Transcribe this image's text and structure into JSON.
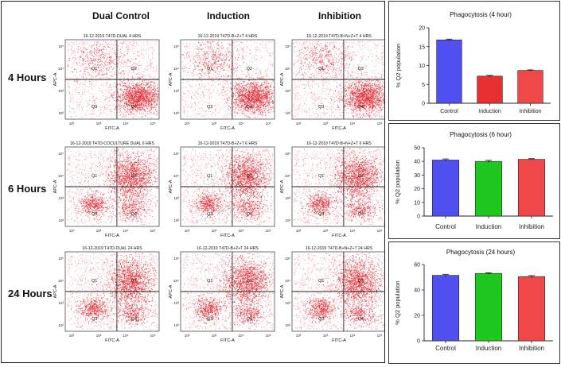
{
  "columns": [
    "Dual Control",
    "Induction",
    "Inhibition"
  ],
  "rows": [
    "4 Hours",
    "6 Hours",
    "24 Hours"
  ],
  "flow_plots": [
    [
      {
        "title": "16-12-2019 T47D-DUAL 4 HRS",
        "dominant": "Q4"
      },
      {
        "title": "16-12-2019 T47D-B+Z+T 4 HRS",
        "dominant": "Q4"
      },
      {
        "title": "16-12-2019 T47D-B+N+Z+T 4 HRS",
        "dominant": "Q4"
      }
    ],
    [
      {
        "title": "16-12-2019 T47D-COCULTURE DUAL 6 HRS",
        "dominant": "Q2"
      },
      {
        "title": "16-12-2019 T47D-B+Z+T 6 HRS",
        "dominant": "Q2"
      },
      {
        "title": "16-12-2019 T47D-B+N+Z+T 6 HRS",
        "dominant": "Q2"
      }
    ],
    [
      {
        "title": "16-12-2019 T47D-DUAL 24 HRS",
        "dominant": "Q2"
      },
      {
        "title": "16-12-2019 T47D-B+Z+T 24 HRS",
        "dominant": "Q2"
      },
      {
        "title": "16-12-2019 T47D-B+N+Z+T 24 HRS",
        "dominant": "Q2"
      }
    ]
  ],
  "flow_axes": {
    "x_label": "FITC-A",
    "y_label": "APC-A",
    "x_ticks": [
      "10²",
      "10³",
      "10⁴",
      "10⁵"
    ],
    "y_ticks": [
      "10⁵",
      "10⁴",
      "10³",
      "10²"
    ],
    "quadrants": [
      "Q1",
      "Q2",
      "Q3",
      "Q4"
    ],
    "dot_color": "#e8202a"
  },
  "chart_data": [
    {
      "type": "bar",
      "title": "Phagocytosis (4 hour)",
      "ylabel": "% Q2 population",
      "categories": [
        "Control",
        "Induction",
        "Inhibition"
      ],
      "values": [
        16.8,
        7.2,
        8.7
      ],
      "errors": [
        0.2,
        0.2,
        0.15
      ],
      "ylim": [
        0,
        20
      ],
      "yticks": [
        0,
        5,
        10,
        15,
        20
      ],
      "colors": [
        "#5050f0",
        "#e83030",
        "#f04848"
      ]
    },
    {
      "type": "bar",
      "title": "Phagocytosis (6 hour)",
      "ylabel": "% Q2 population",
      "categories": [
        "Control",
        "Induction",
        "Inhibition"
      ],
      "values": [
        41,
        40,
        41.5
      ],
      "errors": [
        0.8,
        0.8,
        0.5
      ],
      "ylim": [
        0,
        50
      ],
      "yticks": [
        0,
        10,
        20,
        30,
        40,
        50
      ],
      "colors": [
        "#5050f0",
        "#1ec81e",
        "#f04848"
      ]
    },
    {
      "type": "bar",
      "title": "Phagocytosis (24 hours)",
      "ylabel": "% Q2 population",
      "categories": [
        "Control",
        "Induction",
        "Inhibition"
      ],
      "values": [
        51.5,
        53,
        50.5
      ],
      "errors": [
        0.8,
        0.5,
        0.8
      ],
      "ylim": [
        0,
        60
      ],
      "yticks": [
        0,
        20,
        40,
        60
      ],
      "colors": [
        "#5050f0",
        "#1ec81e",
        "#f04848"
      ]
    }
  ]
}
